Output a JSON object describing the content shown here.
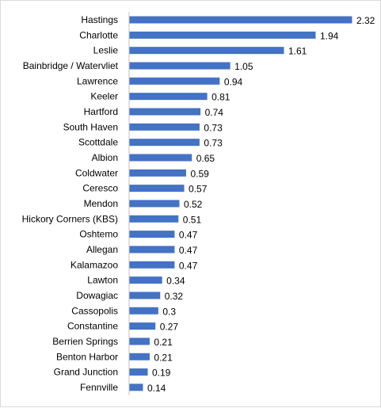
{
  "chart_data": {
    "type": "bar",
    "orientation": "horizontal",
    "title": "",
    "xlabel": "",
    "ylabel": "",
    "categories": [
      "Hastings",
      "Charlotte",
      "Leslie",
      "Bainbridge / Watervliet",
      "Lawrence",
      "Keeler",
      "Hartford",
      "South Haven",
      "Scottdale",
      "Albion",
      "Coldwater",
      "Ceresco",
      "Mendon",
      "Hickory Corners (KBS)",
      "Oshtemo",
      "Allegan",
      "Kalamazoo",
      "Lawton",
      "Dowagiac",
      "Cassopolis",
      "Constantine",
      "Berrien Springs",
      "Benton Harbor",
      "Grand Junction",
      "Fennville"
    ],
    "values": [
      2.32,
      1.94,
      1.61,
      1.05,
      0.94,
      0.81,
      0.74,
      0.73,
      0.73,
      0.65,
      0.59,
      0.57,
      0.52,
      0.51,
      0.47,
      0.47,
      0.47,
      0.34,
      0.32,
      0.3,
      0.27,
      0.21,
      0.21,
      0.19,
      0.14
    ],
    "value_labels": [
      "2.32",
      "1.94",
      "1.61",
      "1.05",
      "0.94",
      "0.81",
      "0.74",
      "0.73",
      "0.73",
      "0.65",
      "0.59",
      "0.57",
      "0.52",
      "0.51",
      "0.47",
      "0.47",
      "0.47",
      "0.34",
      "0.32",
      "0.3",
      "0.27",
      "0.21",
      "0.21",
      "0.19",
      "0.14"
    ],
    "xlim": [
      0,
      2.5
    ],
    "grid": false,
    "legend": "none",
    "data_labels": true,
    "bar_color": "#4472c4",
    "axis_color": "#bfbfbf"
  }
}
